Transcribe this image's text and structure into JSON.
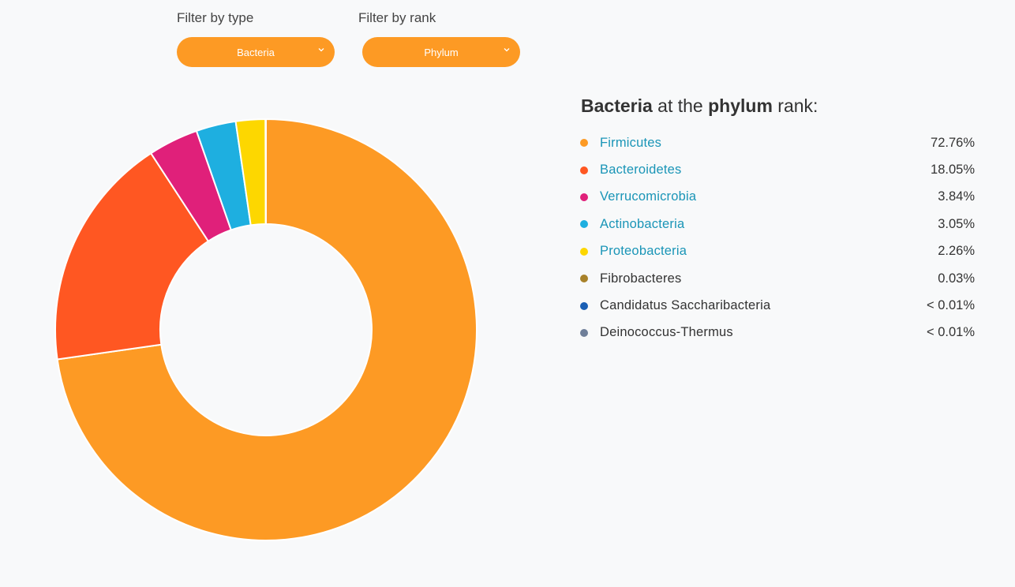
{
  "filters": {
    "type_label": "Filter by type",
    "type_value": "Bacteria",
    "rank_label": "Filter by rank",
    "rank_value": "Phylum"
  },
  "colors": {
    "accent": "#fd9a24"
  },
  "legend": {
    "title_bold_1": "Bacteria",
    "title_mid": " at the ",
    "title_bold_2": "phylum",
    "title_end": " rank:"
  },
  "chart_data": {
    "type": "pie",
    "donut": true,
    "start": "top",
    "direction": "clockwise",
    "slices": [
      {
        "name": "Firmicutes",
        "value": 72.76,
        "label": "72.76%",
        "color": "#fd9a24",
        "link": true
      },
      {
        "name": "Bacteroidetes",
        "value": 18.05,
        "label": "18.05%",
        "color": "#ff5722",
        "link": true
      },
      {
        "name": "Verrucomicrobia",
        "value": 3.84,
        "label": "3.84%",
        "color": "#e0207a",
        "link": true
      },
      {
        "name": "Actinobacteria",
        "value": 3.05,
        "label": "3.05%",
        "color": "#1eafe0",
        "link": true
      },
      {
        "name": "Proteobacteria",
        "value": 2.26,
        "label": "2.26%",
        "color": "#fdd700",
        "link": true
      },
      {
        "name": "Fibrobacteres",
        "value": 0.03,
        "label": "0.03%",
        "color": "#a8822a",
        "link": false
      },
      {
        "name": "Candidatus Saccharibacteria",
        "value": 0.005,
        "label": "< 0.01%",
        "color": "#1a5fb4",
        "link": false
      },
      {
        "name": "Deinococcus-Thermus",
        "value": 0.005,
        "label": "< 0.01%",
        "color": "#6f7f99",
        "link": false
      }
    ]
  }
}
